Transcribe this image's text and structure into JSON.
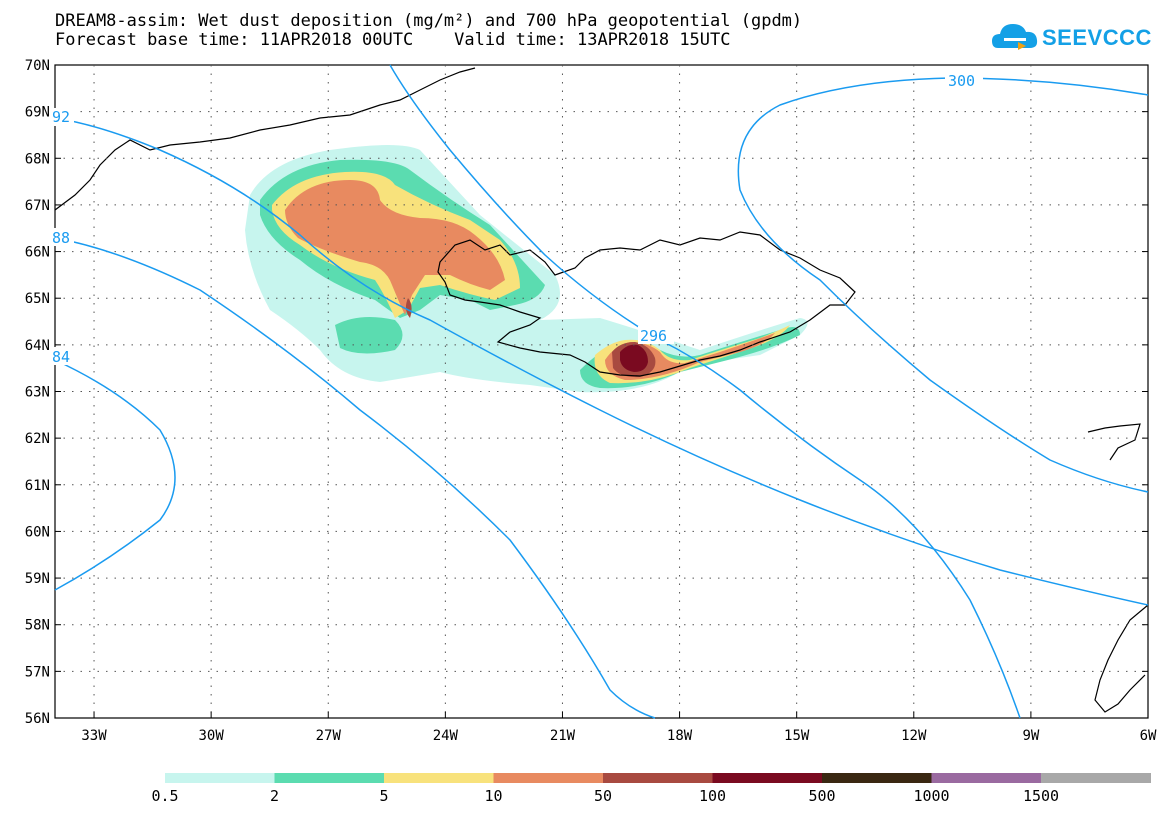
{
  "title": {
    "line1": "DREAM8-assim: Wet dust deposition (mg/m²) and 700 hPa geopotential (gpdm)",
    "line2": "Forecast base time: 11APR2018 00UTC    Valid time: 13APR2018 15UTC"
  },
  "logo": {
    "text": "SEEVCCC",
    "icon": "cloud-icon",
    "color": "#14a0e6"
  },
  "map": {
    "lat_range": [
      56,
      70
    ],
    "lon_range": [
      -34,
      -6
    ],
    "lat_labels": [
      "70N",
      "69N",
      "68N",
      "67N",
      "66N",
      "65N",
      "64N",
      "63N",
      "62N",
      "61N",
      "60N",
      "59N",
      "58N",
      "57N",
      "56N"
    ],
    "lon_labels": [
      "33W",
      "30W",
      "27W",
      "24W",
      "21W",
      "18W",
      "15W",
      "12W",
      "9W",
      "6W"
    ],
    "contour_labels": [
      "92",
      "88",
      "84",
      "296",
      "300"
    ],
    "contour_color": "#1a9bf0"
  },
  "legend": {
    "colors": [
      "#c7f5ee",
      "#5bdcb0",
      "#f8e27c",
      "#e88a60",
      "#a84a40",
      "#7a0a20",
      "#3a2812",
      "#9a6aa0",
      "#a8a8a8"
    ],
    "labels": [
      "0.5",
      "2",
      "5",
      "10",
      "50",
      "100",
      "500",
      "1000",
      "1500"
    ]
  }
}
